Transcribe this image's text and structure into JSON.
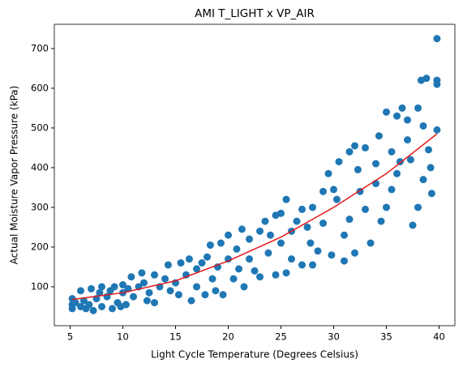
{
  "chart_data": {
    "type": "scatter",
    "title": "AMI T_LIGHT x VP_AIR",
    "x_label": "Light Cycle Temperature (Degrees Celsius)",
    "y_label": "Actual Moisture Vapor Pressure (kPa)",
    "xlim": [
      3.5,
      41.5
    ],
    "ylim": [
      2,
      761
    ],
    "xticks": [
      5,
      10,
      15,
      20,
      25,
      30,
      35,
      40
    ],
    "yticks": [
      100,
      200,
      300,
      400,
      500,
      600,
      700
    ],
    "color": "#1f77b4",
    "x": [
      5.2,
      5.2,
      5.2,
      5.5,
      6,
      6,
      6.3,
      6.5,
      6.8,
      7,
      7.2,
      7.5,
      7.8,
      8,
      8,
      8.5,
      8.8,
      9,
      9.2,
      9.5,
      9.8,
      10,
      10,
      10.3,
      10.5,
      10.8,
      11,
      11.5,
      11.8,
      12,
      12.3,
      12.5,
      13,
      13,
      13.5,
      14,
      14.3,
      14.5,
      15,
      15.3,
      15.5,
      16,
      16.3,
      16.5,
      17,
      17,
      17.5,
      17.8,
      18,
      18.3,
      18.5,
      18.8,
      19,
      19.3,
      19.5,
      20,
      20,
      20.5,
      20.8,
      21,
      21.3,
      21.5,
      22,
      22,
      22.5,
      23,
      23,
      23.5,
      23.8,
      24,
      24.5,
      24.5,
      25,
      25,
      25.5,
      25.5,
      26,
      26,
      26.5,
      27,
      27,
      27.5,
      27.8,
      28,
      28,
      28.5,
      29,
      29,
      29.5,
      29.8,
      30,
      30.3,
      30.5,
      31,
      31,
      31.5,
      31.5,
      32,
      32,
      32.3,
      32.5,
      33,
      33,
      33.5,
      34,
      34,
      34.3,
      34.5,
      35,
      35,
      35.5,
      35.5,
      36,
      36,
      36.3,
      36.5,
      37,
      37,
      37.3,
      37.5,
      38,
      38,
      38.3,
      38.5,
      38.5,
      38.8,
      39,
      39.2,
      39.3,
      39.8,
      39.8,
      39.8,
      39.8
    ],
    "values": [
      45,
      55,
      70,
      60,
      90,
      50,
      65,
      45,
      55,
      95,
      40,
      70,
      85,
      100,
      50,
      75,
      90,
      45,
      100,
      60,
      50,
      105,
      85,
      55,
      95,
      125,
      75,
      100,
      135,
      110,
      65,
      85,
      60,
      130,
      100,
      120,
      155,
      90,
      110,
      80,
      160,
      130,
      170,
      65,
      100,
      145,
      160,
      80,
      175,
      205,
      120,
      90,
      150,
      210,
      80,
      230,
      170,
      120,
      195,
      145,
      245,
      100,
      220,
      170,
      140,
      240,
      125,
      265,
      185,
      230,
      280,
      130,
      210,
      285,
      320,
      135,
      240,
      170,
      265,
      155,
      295,
      250,
      210,
      300,
      155,
      190,
      340,
      260,
      385,
      180,
      345,
      320,
      415,
      230,
      165,
      440,
      270,
      455,
      185,
      395,
      340,
      450,
      295,
      210,
      410,
      360,
      480,
      265,
      540,
      300,
      440,
      345,
      530,
      385,
      415,
      550,
      520,
      470,
      420,
      255,
      550,
      300,
      620,
      505,
      370,
      625,
      445,
      400,
      335,
      725,
      620,
      610,
      495
    ],
    "fit_line": {
      "color": "#e31a1c",
      "x": [
        5.2,
        10,
        15,
        20,
        25,
        30,
        35,
        39.8
      ],
      "values": [
        68,
        85,
        115,
        165,
        225,
        300,
        385,
        485
      ]
    }
  }
}
